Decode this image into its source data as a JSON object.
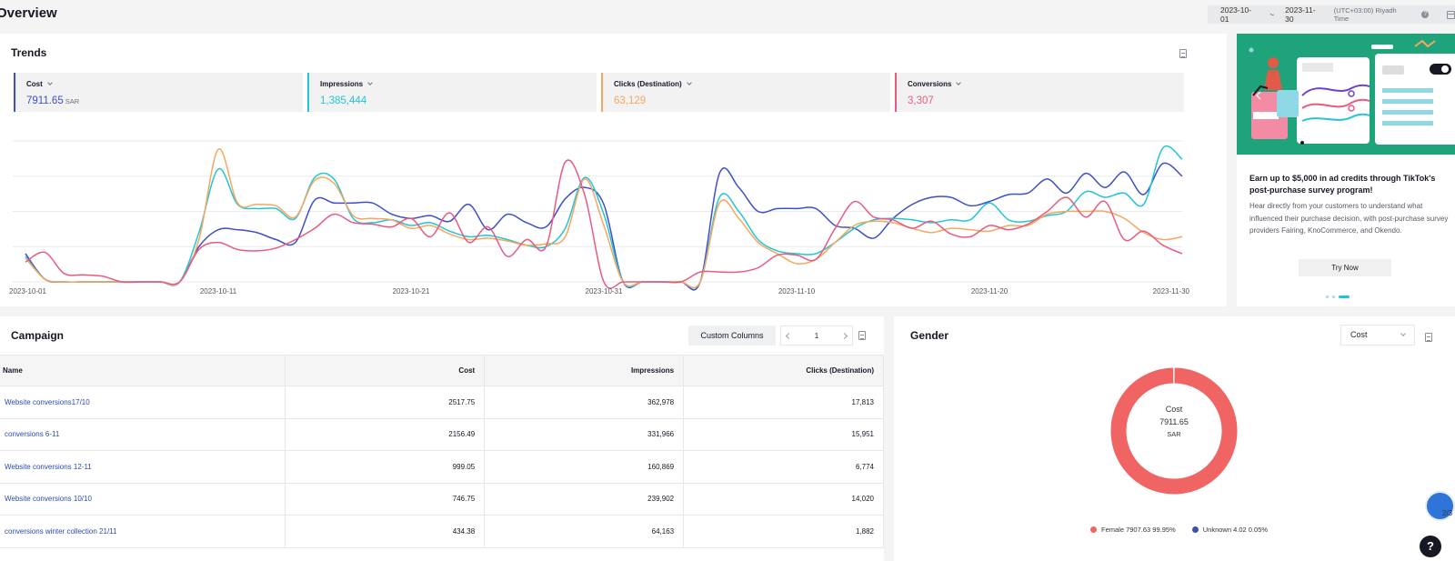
{
  "page": {
    "title": "Overview"
  },
  "date_range": {
    "start": "2023-10-01",
    "separator": "~",
    "end": "2023-11-30",
    "timezone": "(UTC+03:00) Riyadh Time"
  },
  "trends": {
    "title": "Trends",
    "metrics": [
      {
        "name": "Cost",
        "value": "7911.65",
        "unit": "SAR",
        "color": "#3d4fc9"
      },
      {
        "name": "Impressions",
        "value": "1,385,444",
        "color": "#22c5d6"
      },
      {
        "name": "Clicks (Destination)",
        "value": "63,129",
        "color": "#f7a65f"
      },
      {
        "name": "Conversions",
        "value": "3,307",
        "color": "#ea5a7e"
      }
    ]
  },
  "chart_data": {
    "type": "line",
    "x": [
      "2023-10-01",
      "2023-10-02",
      "2023-10-03",
      "2023-10-04",
      "2023-10-05",
      "2023-10-06",
      "2023-10-07",
      "2023-10-08",
      "2023-10-09",
      "2023-10-10",
      "2023-10-11",
      "2023-10-12",
      "2023-10-13",
      "2023-10-14",
      "2023-10-15",
      "2023-10-16",
      "2023-10-17",
      "2023-10-18",
      "2023-10-19",
      "2023-10-20",
      "2023-10-21",
      "2023-10-22",
      "2023-10-23",
      "2023-10-24",
      "2023-10-25",
      "2023-10-26",
      "2023-10-27",
      "2023-10-28",
      "2023-10-29",
      "2023-10-30",
      "2023-10-31",
      "2023-11-01",
      "2023-11-02",
      "2023-11-03",
      "2023-11-04",
      "2023-11-05",
      "2023-11-06",
      "2023-11-07",
      "2023-11-08",
      "2023-11-09",
      "2023-11-10",
      "2023-11-11",
      "2023-11-12",
      "2023-11-13",
      "2023-11-14",
      "2023-11-15",
      "2023-11-16",
      "2023-11-17",
      "2023-11-18",
      "2023-11-19",
      "2023-11-20",
      "2023-11-21",
      "2023-11-22",
      "2023-11-23",
      "2023-11-24",
      "2023-11-25",
      "2023-11-26",
      "2023-11-27",
      "2023-11-28",
      "2023-11-29",
      "2023-11-30"
    ],
    "x_tick_labels": [
      "2023-10-01",
      "2023-10-11",
      "2023-10-21",
      "2023-10-31",
      "2023-11-10",
      "2023-11-20",
      "2023-11-30"
    ],
    "y_axis_shown": false,
    "grid": true,
    "ylim": [
      0,
      1
    ],
    "note_units": "relative, each series normalized",
    "series": [
      {
        "name": "Cost",
        "color": "#3d4fc9",
        "values": [
          0.2,
          0.02,
          0.0,
          0.0,
          0.0,
          0.0,
          0.0,
          0.0,
          0.0,
          0.25,
          0.37,
          0.37,
          0.35,
          0.3,
          0.28,
          0.58,
          0.56,
          0.56,
          0.56,
          0.48,
          0.45,
          0.47,
          0.43,
          0.55,
          0.37,
          0.48,
          0.42,
          0.39,
          0.59,
          0.67,
          0.55,
          0.0,
          0.0,
          0.0,
          0.0,
          0.0,
          0.77,
          0.67,
          0.5,
          0.52,
          0.52,
          0.52,
          0.4,
          0.38,
          0.31,
          0.45,
          0.55,
          0.6,
          0.6,
          0.54,
          0.57,
          0.62,
          0.63,
          0.73,
          0.63,
          0.77,
          0.67,
          0.78,
          0.62,
          0.84,
          0.75
        ]
      },
      {
        "name": "Impressions",
        "color": "#22c5d6",
        "values": [
          0.18,
          0.02,
          0.0,
          0.0,
          0.0,
          0.0,
          0.0,
          0.0,
          0.0,
          0.35,
          0.8,
          0.55,
          0.52,
          0.52,
          0.45,
          0.74,
          0.73,
          0.45,
          0.42,
          0.44,
          0.4,
          0.42,
          0.36,
          0.32,
          0.33,
          0.3,
          0.26,
          0.25,
          0.38,
          0.74,
          0.48,
          0.0,
          0.0,
          0.0,
          0.0,
          0.0,
          0.6,
          0.5,
          0.3,
          0.22,
          0.2,
          0.2,
          0.28,
          0.38,
          0.44,
          0.45,
          0.44,
          0.42,
          0.44,
          0.44,
          0.56,
          0.44,
          0.43,
          0.47,
          0.5,
          0.64,
          0.6,
          0.63,
          0.55,
          0.95,
          0.87
        ]
      },
      {
        "name": "Clicks (Destination)",
        "color": "#f7a65f",
        "values": [
          0.17,
          0.02,
          0.0,
          0.0,
          0.0,
          0.0,
          0.0,
          0.0,
          0.0,
          0.3,
          0.94,
          0.56,
          0.55,
          0.54,
          0.46,
          0.72,
          0.7,
          0.47,
          0.45,
          0.44,
          0.38,
          0.4,
          0.34,
          0.3,
          0.31,
          0.29,
          0.26,
          0.27,
          0.32,
          0.73,
          0.4,
          0.0,
          0.0,
          0.0,
          0.0,
          0.0,
          0.56,
          0.45,
          0.28,
          0.2,
          0.13,
          0.16,
          0.28,
          0.4,
          0.43,
          0.42,
          0.38,
          0.35,
          0.38,
          0.37,
          0.36,
          0.4,
          0.4,
          0.48,
          0.5,
          0.5,
          0.5,
          0.45,
          0.35,
          0.3,
          0.32
        ]
      },
      {
        "name": "Conversions",
        "color": "#ea5a7e",
        "values": [
          0.14,
          0.21,
          0.06,
          0.05,
          0.04,
          0.0,
          0.0,
          0.0,
          0.0,
          0.23,
          0.28,
          0.23,
          0.22,
          0.24,
          0.3,
          0.38,
          0.48,
          0.42,
          0.41,
          0.39,
          0.45,
          0.32,
          0.49,
          0.28,
          0.39,
          0.18,
          0.3,
          0.25,
          0.85,
          0.62,
          0.0,
          0.0,
          0.0,
          0.0,
          0.0,
          0.07,
          0.07,
          0.07,
          0.1,
          0.19,
          0.19,
          0.16,
          0.38,
          0.57,
          0.46,
          0.44,
          0.38,
          0.43,
          0.34,
          0.32,
          0.4,
          0.37,
          0.41,
          0.5,
          0.6,
          0.46,
          0.57,
          0.3,
          0.36,
          0.26,
          0.2
        ]
      }
    ]
  },
  "promo": {
    "title": "Earn up to $5,000 in ad credits through TikTok's post-purchase survey program!",
    "description": "Hear directly from your customers to understand what influenced their purchase decision, with post-purchase survey providers Fairing, KnoCommerce, and Okendo.",
    "button": "Try Now"
  },
  "campaign": {
    "title": "Campaign",
    "custom_columns": "Custom Columns",
    "page": "1",
    "columns": [
      "Name",
      "Cost",
      "Impressions",
      "Clicks (Destination)"
    ],
    "rows": [
      {
        "name": "Website conversions17/10",
        "cost": "2517.75",
        "impressions": "362,978",
        "clicks": "17,813"
      },
      {
        "name": "conversions 6-11",
        "cost": "2156.49",
        "impressions": "331,966",
        "clicks": "15,951"
      },
      {
        "name": "Website conversions 12-11",
        "cost": "999.05",
        "impressions": "160,869",
        "clicks": "6,774"
      },
      {
        "name": "Website conversions 10/10",
        "cost": "746.75",
        "impressions": "239,902",
        "clicks": "14,020"
      },
      {
        "name": "conversions winter collection 21/11",
        "cost": "434.38",
        "impressions": "64,163",
        "clicks": "1,882"
      }
    ]
  },
  "gender": {
    "title": "Gender",
    "metric_select": "Cost",
    "center_label": "Cost",
    "center_value": "7911.65",
    "center_unit": "SAR",
    "slices": [
      {
        "label": "Female 7907.63 99.95%",
        "value": 99.95,
        "color": "#f06464"
      },
      {
        "label": "Unknown 4.02 0.05%",
        "value": 0.05,
        "color": "#3d4fa1"
      }
    ]
  },
  "floating": {
    "count": "2/3",
    "help": "?"
  }
}
